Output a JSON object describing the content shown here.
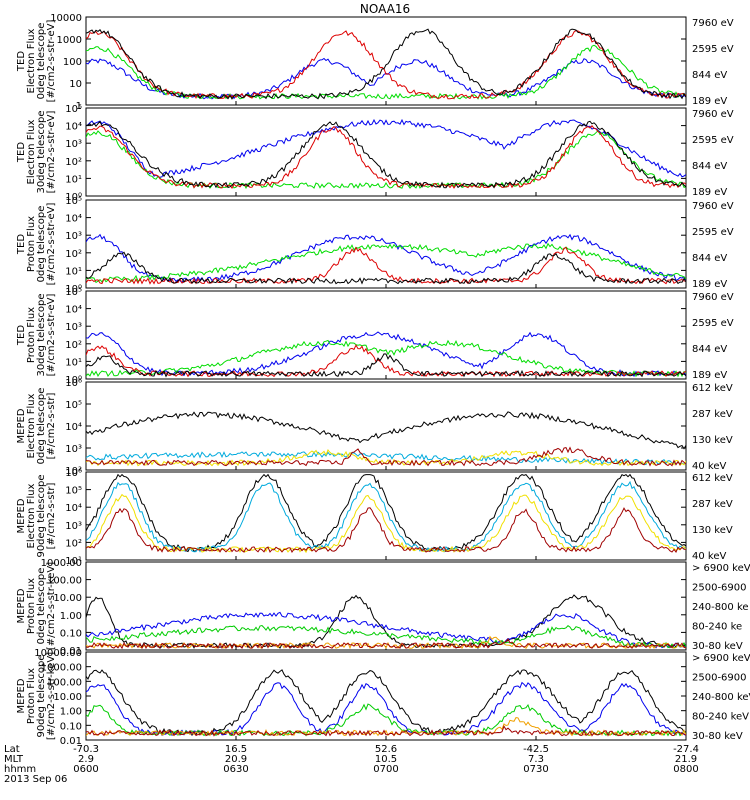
{
  "title": "NOAA16",
  "x_labels": {
    "rows": [
      "Lat",
      "MLT",
      "hhmm"
    ],
    "columns": [
      [
        "-70.3",
        "2.9",
        "0600"
      ],
      [
        "16.5",
        "20.9",
        "0630"
      ],
      [
        "52.6",
        "10.5",
        "0700"
      ],
      [
        "-42.5",
        "7.3",
        "0730"
      ],
      [
        "-27.4",
        "21.9",
        "0800"
      ]
    ],
    "date": "2013 Sep 06"
  },
  "chart_data": [
    {
      "type": "line",
      "ylabel": [
        "TED",
        "Electron Flux",
        "0deg telescope",
        "[#/cm2-s-str-eV]"
      ],
      "y_ticks": [
        "10000",
        "1000",
        "100",
        "10",
        "1"
      ],
      "yscale": "log",
      "ylim": [
        1,
        10000
      ],
      "legend": [
        {
          "label": "7960 eV",
          "color": "#000000"
        },
        {
          "label": "2595 eV",
          "color": "#dd0000"
        },
        {
          "label": "844 eV",
          "color": "#00dd00"
        },
        {
          "label": "189 eV",
          "color": "#0000ee"
        }
      ]
    },
    {
      "type": "line",
      "ylabel": [
        "TED",
        "Electron Flux",
        "30deg telescope",
        "[#/cm2-s-str-eV]"
      ],
      "y_ticks": [
        "10⁵",
        "10⁴",
        "10³",
        "10²",
        "10¹",
        "10⁰"
      ],
      "yscale": "log",
      "ylim": [
        1,
        100000
      ],
      "legend": [
        {
          "label": "7960 eV",
          "color": "#000000"
        },
        {
          "label": "2595 eV",
          "color": "#dd0000"
        },
        {
          "label": "844 eV",
          "color": "#00dd00"
        },
        {
          "label": "189 eV",
          "color": "#0000ee"
        }
      ]
    },
    {
      "type": "line",
      "ylabel": [
        "TED",
        "Proton Flux",
        "0deg telescope",
        "[#/cm2-s-str-eV]"
      ],
      "y_ticks": [
        "10⁵",
        "10⁴",
        "10³",
        "10²",
        "10¹",
        "10⁰"
      ],
      "yscale": "log",
      "ylim": [
        1,
        100000
      ],
      "legend": [
        {
          "label": "7960 eV",
          "color": "#000000"
        },
        {
          "label": "2595 eV",
          "color": "#dd0000"
        },
        {
          "label": "844 eV",
          "color": "#00dd00"
        },
        {
          "label": "189 eV",
          "color": "#0000ee"
        }
      ]
    },
    {
      "type": "line",
      "ylabel": [
        "TED",
        "Proton Flux",
        "30deg telescope",
        "[#/cm2-s-str-eV]"
      ],
      "y_ticks": [
        "10⁵",
        "10⁴",
        "10³",
        "10²",
        "10¹",
        "10⁰"
      ],
      "yscale": "log",
      "ylim": [
        1,
        100000
      ],
      "legend": [
        {
          "label": "7960 eV",
          "color": "#000000"
        },
        {
          "label": "2595 eV",
          "color": "#dd0000"
        },
        {
          "label": "844 eV",
          "color": "#00dd00"
        },
        {
          "label": "189 eV",
          "color": "#0000ee"
        }
      ]
    },
    {
      "type": "line",
      "ylabel": [
        "MEPED",
        "Electron Flux",
        "0deg telescope",
        "[#/cm2-s-str]"
      ],
      "y_ticks": [
        "10⁶",
        "10⁵",
        "10⁴",
        "10³",
        "10²"
      ],
      "yscale": "log",
      "ylim": [
        100,
        1000000
      ],
      "legend": [
        {
          "label": "612 keV",
          "color": "#a00000"
        },
        {
          "label": "287 keV",
          "color": "#f0e000"
        },
        {
          "label": "130 keV",
          "color": "#00aadd"
        },
        {
          "label": "40 keV",
          "color": "#000000"
        }
      ]
    },
    {
      "type": "line",
      "ylabel": [
        "MEPED",
        "Electron Flux",
        "90deg telescope",
        "[#/cm2-s-str]"
      ],
      "y_ticks": [
        "10⁶",
        "10⁵",
        "10⁴",
        "10³",
        "10²",
        "10¹"
      ],
      "yscale": "log",
      "ylim": [
        10,
        1000000
      ],
      "legend": [
        {
          "label": "612 keV",
          "color": "#a00000"
        },
        {
          "label": "287 keV",
          "color": "#f0e000"
        },
        {
          "label": "130 keV",
          "color": "#00aadd"
        },
        {
          "label": "40 keV",
          "color": "#000000"
        }
      ]
    },
    {
      "type": "line",
      "ylabel": [
        "MEPED",
        "Proton Flux",
        "0deg telescope",
        "[#/cm2-s-str-keV]"
      ],
      "y_ticks": [
        "1000.00",
        "100.00",
        "10.00",
        "1.00",
        "0.10",
        "0.01"
      ],
      "yscale": "log",
      "ylim": [
        0.01,
        1000
      ],
      "legend": [
        {
          "label": "> 6900 keV",
          "color": "#a00000"
        },
        {
          "label": "2500-6900",
          "color": "#f0a000"
        },
        {
          "label": "240-800 ke",
          "color": "#00cc00"
        },
        {
          "label": "80-240 ke",
          "color": "#0000ee"
        },
        {
          "label": "30-80 keV",
          "color": "#000000"
        }
      ]
    },
    {
      "type": "line",
      "ylabel": [
        "MEPED",
        "Proton Flux",
        "90deg telescope",
        "[#/cm2-s-str-keV]"
      ],
      "y_ticks": [
        "10000.00",
        "1000.00",
        "100.00",
        "10.00",
        "1.00",
        "0.10",
        "0.01"
      ],
      "yscale": "log",
      "ylim": [
        0.01,
        10000
      ],
      "legend": [
        {
          "label": "> 6900 keV",
          "color": "#a00000"
        },
        {
          "label": "2500-6900",
          "color": "#f0a000"
        },
        {
          "label": "240-800 keV",
          "color": "#00cc00"
        },
        {
          "label": "80-240 keV",
          "color": "#0000ee"
        },
        {
          "label": "30-80 keV",
          "color": "#000000"
        }
      ]
    }
  ]
}
